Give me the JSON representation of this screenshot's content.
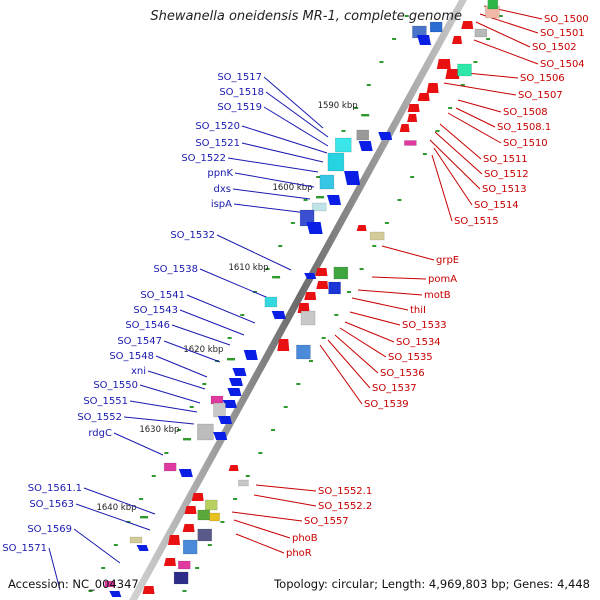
{
  "title": "Shewanella oneidensis MR-1, complete genome",
  "accession": "Accession: NC_004347",
  "topology": "Topology: circular; Length: 4,969,803 bp; Genes: 4,448",
  "kbp_labels": [
    "1590 kbp",
    "1600 kbp",
    "1610 kbp",
    "1620 kbp",
    "1630 kbp",
    "1640 kbp"
  ],
  "left_genes": [
    "SO_1517",
    "SO_1518",
    "SO_1519",
    "SO_1520",
    "SO_1521",
    "SO_1522",
    "ppnK",
    "dxs",
    "ispA",
    "SO_1532",
    "SO_1538",
    "SO_1541",
    "SO_1543",
    "SO_1546",
    "SO_1547",
    "SO_1548",
    "xni",
    "SO_1550",
    "SO_1551",
    "SO_1552",
    "rdgC",
    "SO_1561.1",
    "SO_1563",
    "SO_1569",
    "SO_1571"
  ],
  "right_genes": [
    "SO_1500",
    "SO_1501",
    "SO_1502",
    "SO_1504",
    "SO_1506",
    "SO_1507",
    "SO_1508",
    "SO_1508.1",
    "SO_1510",
    "SO_1511",
    "SO_1512",
    "SO_1513",
    "SO_1514",
    "SO_1515",
    "grpE",
    "pomA",
    "motB",
    "thiI",
    "SO_1533",
    "SO_1534",
    "SO_1535",
    "SO_1536",
    "SO_1537",
    "SO_1539",
    "SO_1552.1",
    "SO_1552.2",
    "SO_1557",
    "phoB",
    "phoR"
  ],
  "colors": {
    "forward_label": "#1a1ab0",
    "reverse_label": "#c80000",
    "forward_gene": "#0a1ee6",
    "reverse_gene": "#e81010",
    "backbone": "#8a8a8a",
    "tick": "#2e9a2e"
  }
}
